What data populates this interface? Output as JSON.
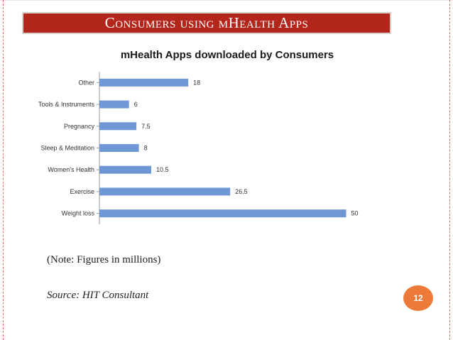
{
  "slide": {
    "title": "Consumers using mHealth Apps",
    "note": "(Note: Figures in millions)",
    "source": "Source: HIT Consultant",
    "page_number": "12"
  },
  "colors": {
    "title_bar": "#b3261c",
    "bar": "#6f97d6",
    "badge": "#ee7a3a"
  },
  "chart_data": {
    "type": "bar",
    "orientation": "horizontal",
    "title": "mHealth Apps downloaded by Consumers",
    "categories": [
      "Other",
      "Tools & Instruments",
      "Pregnancy",
      "Sleep & Meditation",
      "Women's Health",
      "Exercise",
      "Weight loss"
    ],
    "values": [
      18,
      6,
      7.5,
      8,
      10.5,
      26.5,
      50
    ],
    "value_labels": [
      "18",
      "6",
      "7.5",
      "8",
      "10.5",
      "26.5",
      "50"
    ],
    "xlim": [
      0,
      50
    ],
    "xlabel": "",
    "ylabel": "",
    "grid": false,
    "legend": "none"
  }
}
